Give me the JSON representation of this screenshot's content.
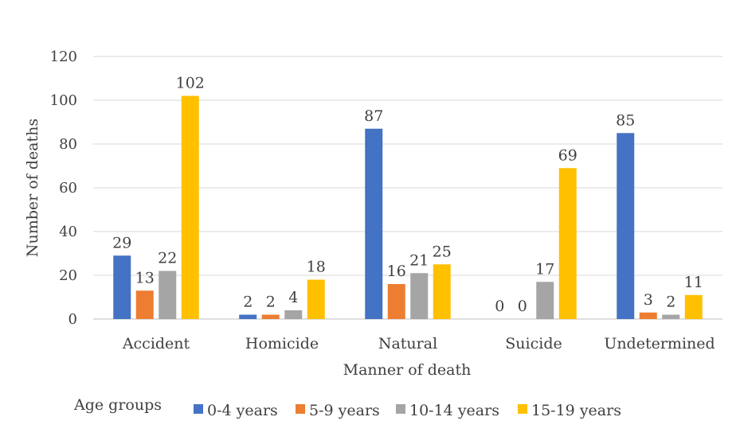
{
  "chart_data": {
    "type": "bar",
    "title": "",
    "xlabel": "Manner of death",
    "ylabel": "Number of deaths",
    "ylim": [
      0,
      120
    ],
    "yticks": [
      0,
      20,
      40,
      60,
      80,
      100,
      120
    ],
    "grid": true,
    "categories": [
      "Accident",
      "Homicide",
      "Natural",
      "Suicide",
      "Undetermined"
    ],
    "series": [
      {
        "name": "0-4 years",
        "color": "#4472C4",
        "values": [
          29,
          2,
          87,
          0,
          85
        ]
      },
      {
        "name": "5-9 years",
        "color": "#ED7D31",
        "values": [
          13,
          2,
          16,
          0,
          3
        ]
      },
      {
        "name": "10-14 years",
        "color": "#A5A5A5",
        "values": [
          22,
          4,
          21,
          17,
          2
        ]
      },
      {
        "name": "15-19 years",
        "color": "#FFC000",
        "values": [
          102,
          18,
          25,
          69,
          11
        ]
      }
    ],
    "legend": {
      "title": "Age groups",
      "position": "bottom"
    }
  }
}
